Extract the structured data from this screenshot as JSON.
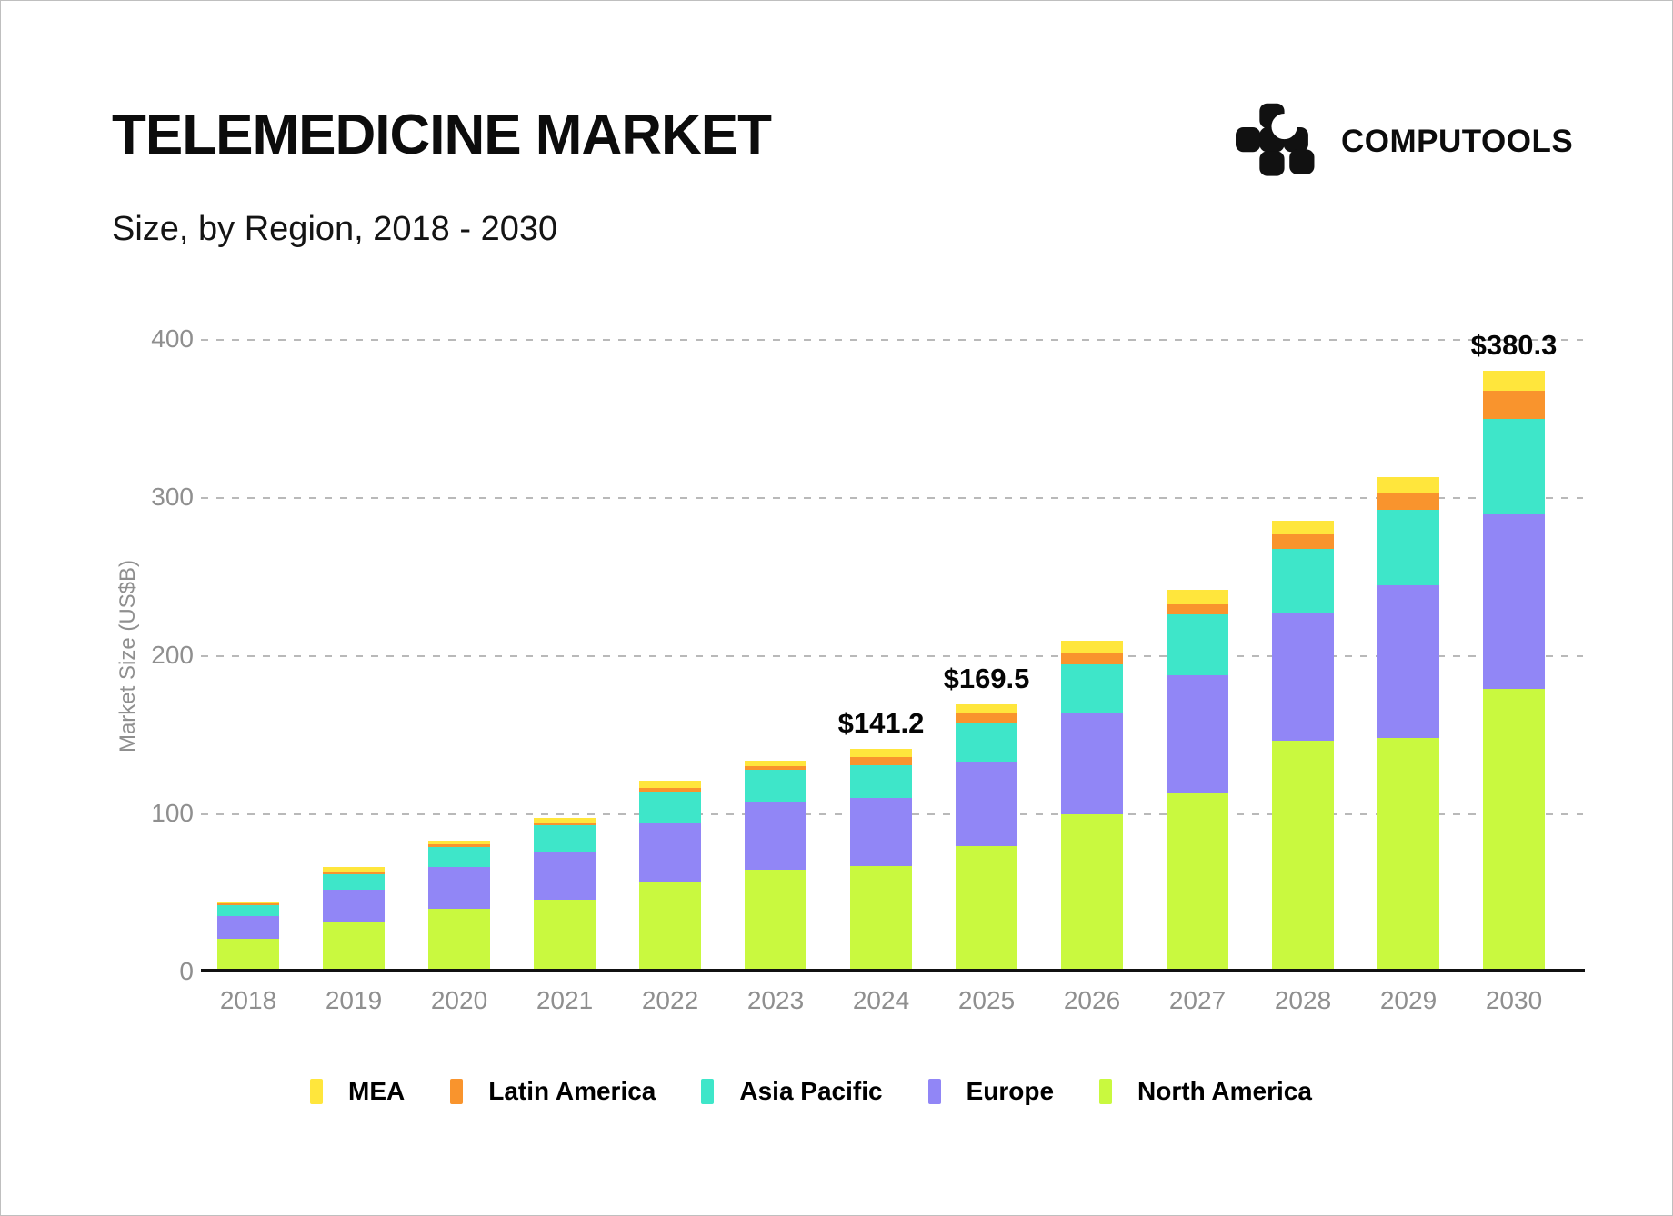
{
  "header": {
    "title": "TELEMEDICINE MARKET",
    "subtitle": "Size, by Region, 2018 - 2030",
    "brand": "COMPUTOOLS",
    "logo_icon": "computools-pixel-mark",
    "logo_color": "#111111"
  },
  "chart_data": {
    "type": "bar",
    "stacked": true,
    "title": "TELEMEDICINE MARKET",
    "subtitle": "Size, by Region, 2018 - 2030",
    "xlabel": "",
    "ylabel": "Market Size (US$B)",
    "ylim": [
      0,
      400
    ],
    "yticks": [
      "0",
      "100",
      "200",
      "300",
      "400"
    ],
    "grid": "horizontal-dashed",
    "gridline_color": "#b9b9b9",
    "axis_line_color": "#111111",
    "tick_label_color": "#8f8f8f",
    "legend_position": "bottom",
    "categories": [
      "2018",
      "2019",
      "2020",
      "2021",
      "2022",
      "2023",
      "2024",
      "2025",
      "2026",
      "2027",
      "2028",
      "2029",
      "2030"
    ],
    "stack_order_bottom_to_top": [
      "North America",
      "Europe",
      "Asia Pacific",
      "Latin America",
      "MEA"
    ],
    "series": [
      {
        "name": "MEA",
        "color": "#FFE63C",
        "values": [
          1.5,
          2.8,
          2.3,
          3.3,
          4.4,
          3.4,
          4.9,
          5.0,
          7.6,
          9.0,
          8.6,
          9.8,
          12.6
        ]
      },
      {
        "name": "Latin America",
        "color": "#F9942D",
        "values": [
          1.1,
          2.0,
          1.9,
          1.5,
          2.3,
          2.3,
          5.0,
          6.2,
          7.3,
          6.3,
          8.9,
          11.0,
          17.8
        ]
      },
      {
        "name": "Asia Pacific",
        "color": "#3EE6C9",
        "values": [
          6.9,
          9.8,
          12.6,
          16.9,
          20.3,
          20.7,
          21.1,
          25.6,
          31.0,
          38.7,
          40.9,
          47.2,
          60.3
        ]
      },
      {
        "name": "Europe",
        "color": "#9186F6",
        "values": [
          14.4,
          20.3,
          26.4,
          30.2,
          37.2,
          42.7,
          43.2,
          52.7,
          63.8,
          74.4,
          80.3,
          97.0,
          110.5
        ]
      },
      {
        "name": "North America",
        "color": "#C9F93F",
        "values": [
          21.1,
          32.0,
          40.1,
          45.8,
          56.9,
          64.8,
          67.0,
          80.0,
          100.0,
          113.4,
          146.8,
          148.1,
          179.1
        ]
      }
    ],
    "totals": [
      45.0,
      66.9,
      83.3,
      97.7,
      121.1,
      133.9,
      141.2,
      169.5,
      209.7,
      241.8,
      285.5,
      313.1,
      380.3
    ],
    "annotations": [
      {
        "category": "2024",
        "label": "$141.2"
      },
      {
        "category": "2025",
        "label": "$169.5"
      },
      {
        "category": "2030",
        "label": "$380.3"
      }
    ]
  }
}
